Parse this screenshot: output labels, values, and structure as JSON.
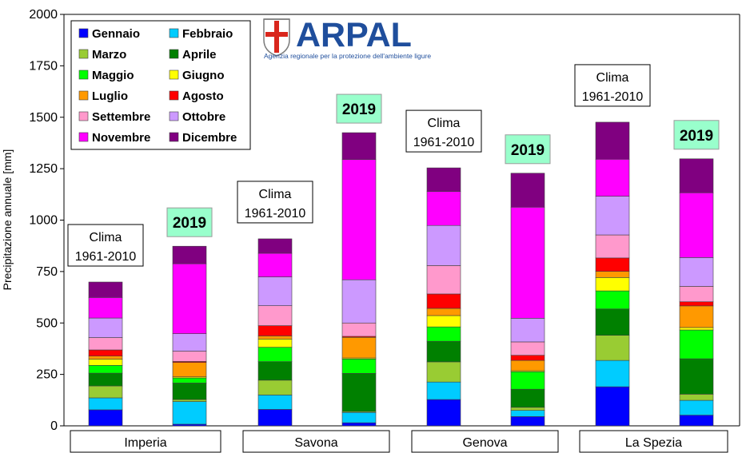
{
  "logo": {
    "name": "ARPAL",
    "subtitle": "Agenzia regionale per la protezione dell'ambiente ligure"
  },
  "chart_data": {
    "type": "bar",
    "stacked": true,
    "ylabel": "Precipitazione annuale [mm]",
    "ylim": [
      0,
      2000
    ],
    "yticks": [
      0,
      250,
      500,
      750,
      1000,
      1250,
      1500,
      1750,
      2000
    ],
    "grid": false,
    "legend_position": "top-left",
    "stations": [
      "Imperia",
      "Savona",
      "Genova",
      "La Spezia"
    ],
    "bars": [
      {
        "station": "Imperia",
        "label": [
          "Clima",
          "1961-2010"
        ],
        "highlight": false
      },
      {
        "station": "Imperia",
        "label": [
          "2019"
        ],
        "highlight": true
      },
      {
        "station": "Savona",
        "label": [
          "Clima",
          "1961-2010"
        ],
        "highlight": false
      },
      {
        "station": "Savona",
        "label": [
          "2019"
        ],
        "highlight": true
      },
      {
        "station": "Genova",
        "label": [
          "Clima",
          "1961-2010"
        ],
        "highlight": false
      },
      {
        "station": "Genova",
        "label": [
          "2019"
        ],
        "highlight": true
      },
      {
        "station": "La Spezia",
        "label": [
          "Clima",
          "1961-2010"
        ],
        "highlight": false
      },
      {
        "station": "La Spezia",
        "label": [
          "2019"
        ],
        "highlight": true
      }
    ],
    "series": [
      {
        "name": "Gennaio",
        "color": "#0000ff",
        "values": [
          78,
          8,
          80,
          15,
          128,
          45,
          190,
          52
        ]
      },
      {
        "name": "Febbraio",
        "color": "#00ccff",
        "values": [
          58,
          110,
          70,
          50,
          85,
          30,
          128,
          72
        ]
      },
      {
        "name": "Marzo",
        "color": "#99cc33",
        "values": [
          58,
          10,
          72,
          5,
          98,
          15,
          122,
          30
        ]
      },
      {
        "name": "Aprile",
        "color": "#008000",
        "values": [
          62,
          80,
          90,
          185,
          100,
          88,
          128,
          172
        ]
      },
      {
        "name": "Maggio",
        "color": "#00ff00",
        "values": [
          38,
          25,
          70,
          70,
          70,
          85,
          88,
          140
        ]
      },
      {
        "name": "Giugno",
        "color": "#ffff00",
        "values": [
          30,
          5,
          40,
          5,
          55,
          5,
          65,
          12
        ]
      },
      {
        "name": "Luglio",
        "color": "#ff9900",
        "values": [
          15,
          70,
          15,
          100,
          35,
          50,
          30,
          105
        ]
      },
      {
        "name": "Agosto",
        "color": "#ff0000",
        "values": [
          30,
          5,
          50,
          5,
          70,
          25,
          65,
          20
        ]
      },
      {
        "name": "Settembre",
        "color": "#ff99cc",
        "values": [
          60,
          50,
          97,
          65,
          138,
          65,
          112,
          75
        ]
      },
      {
        "name": "Ottobre",
        "color": "#cc99ff",
        "values": [
          95,
          85,
          140,
          210,
          195,
          115,
          188,
          140
        ]
      },
      {
        "name": "Novembre",
        "color": "#ff00ff",
        "values": [
          100,
          340,
          115,
          585,
          165,
          540,
          180,
          315
        ]
      },
      {
        "name": "Dicembre",
        "color": "#800080",
        "values": [
          75,
          85,
          70,
          130,
          115,
          165,
          180,
          165
        ]
      }
    ]
  }
}
